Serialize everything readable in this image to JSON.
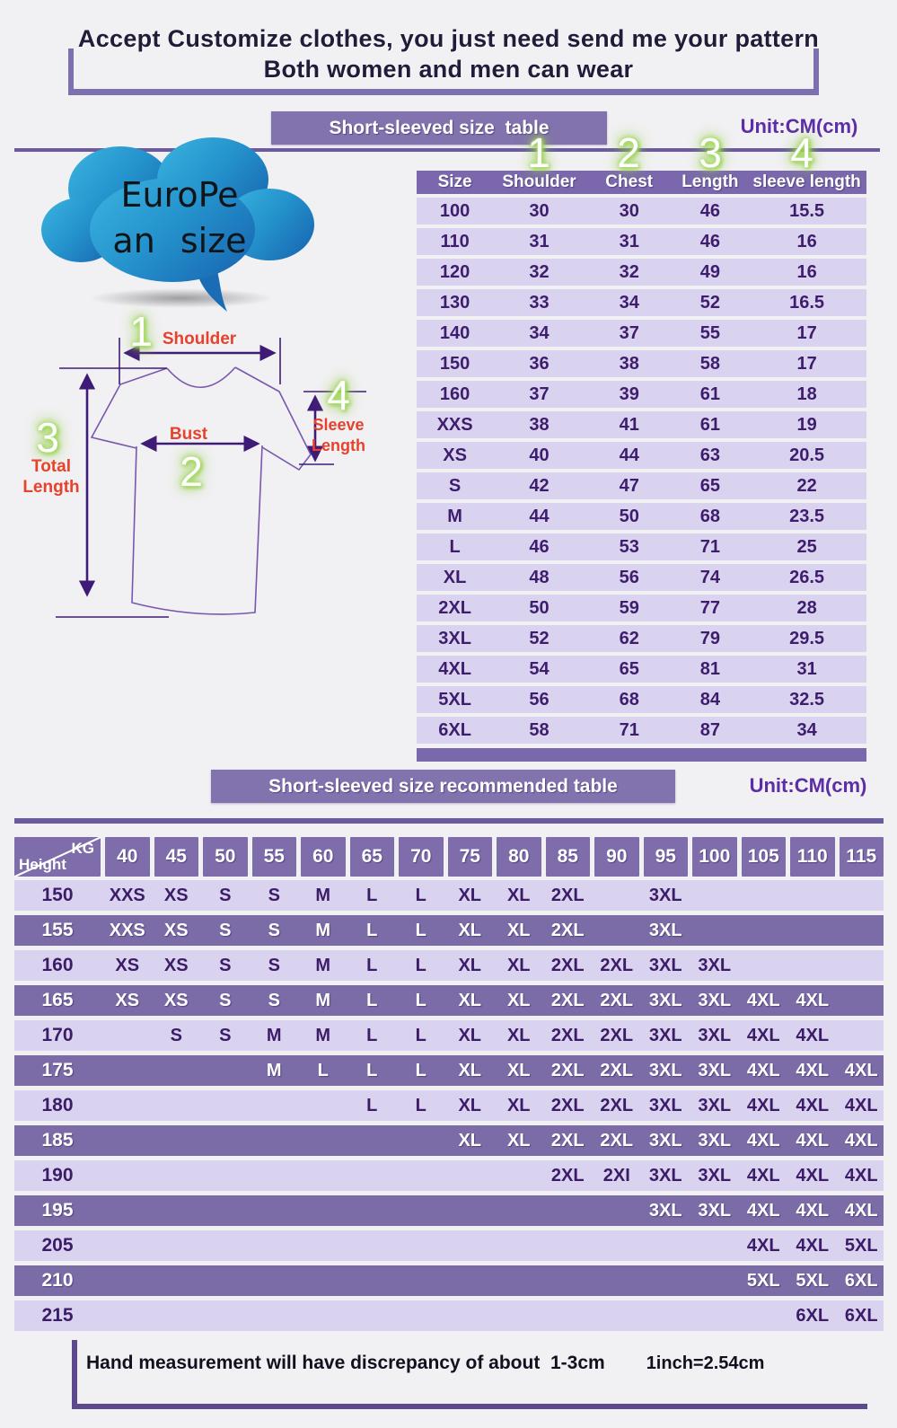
{
  "header": {
    "line1": "Accept Customize clothes, you just need send me your pattern",
    "line2": "Both women and men can wear"
  },
  "cloud": {
    "line1": "EuroPe",
    "line2": "an size"
  },
  "size_table": {
    "title": "Short-sleeved size  table",
    "unit": "Unit:CM(cm)",
    "col_numbers": [
      "1",
      "2",
      "3",
      "4"
    ],
    "columns": [
      "Size",
      "Shoulder",
      "Chest",
      "Length",
      "sleeve length"
    ],
    "rows": [
      [
        "100",
        "30",
        "30",
        "46",
        "15.5"
      ],
      [
        "110",
        "31",
        "31",
        "46",
        "16"
      ],
      [
        "120",
        "32",
        "32",
        "49",
        "16"
      ],
      [
        "130",
        "33",
        "34",
        "52",
        "16.5"
      ],
      [
        "140",
        "34",
        "37",
        "55",
        "17"
      ],
      [
        "150",
        "36",
        "38",
        "58",
        "17"
      ],
      [
        "160",
        "37",
        "39",
        "61",
        "18"
      ],
      [
        "XXS",
        "38",
        "41",
        "61",
        "19"
      ],
      [
        "XS",
        "40",
        "44",
        "63",
        "20.5"
      ],
      [
        "S",
        "42",
        "47",
        "65",
        "22"
      ],
      [
        "M",
        "44",
        "50",
        "68",
        "23.5"
      ],
      [
        "L",
        "46",
        "53",
        "71",
        "25"
      ],
      [
        "XL",
        "48",
        "56",
        "74",
        "26.5"
      ],
      [
        "2XL",
        "50",
        "59",
        "77",
        "28"
      ],
      [
        "3XL",
        "52",
        "62",
        "79",
        "29.5"
      ],
      [
        "4XL",
        "54",
        "65",
        "81",
        "31"
      ],
      [
        "5XL",
        "56",
        "68",
        "84",
        "32.5"
      ],
      [
        "6XL",
        "58",
        "71",
        "87",
        "34"
      ]
    ]
  },
  "diagram": {
    "shoulder": {
      "num": "1",
      "label": "Shoulder"
    },
    "bust": {
      "num": "2",
      "label": "Bust"
    },
    "total": {
      "num": "3",
      "label_line1": "Total",
      "label_line2": "Length"
    },
    "sleeve": {
      "num": "4",
      "label_line1": "Sleeve",
      "label_line2": "Length"
    }
  },
  "recommend_table": {
    "title": "Short-sleeved size recommended table",
    "unit": "Unit:CM(cm)",
    "corner_top": "KG",
    "corner_bottom": "Height",
    "kg_columns": [
      "40",
      "45",
      "50",
      "55",
      "60",
      "65",
      "70",
      "75",
      "80",
      "85",
      "90",
      "95",
      "100",
      "105",
      "110",
      "115"
    ],
    "rows": [
      {
        "height": "150",
        "cells": [
          "XXS",
          "XS",
          "S",
          "S",
          "M",
          "L",
          "L",
          "XL",
          "XL",
          "2XL",
          "",
          "3XL",
          "",
          "",
          "",
          ""
        ]
      },
      {
        "height": "155",
        "cells": [
          "XXS",
          "XS",
          "S",
          "S",
          "M",
          "L",
          "L",
          "XL",
          "XL",
          "2XL",
          "",
          "3XL",
          "",
          "",
          "",
          ""
        ]
      },
      {
        "height": "160",
        "cells": [
          "XS",
          "XS",
          "S",
          "S",
          "M",
          "L",
          "L",
          "XL",
          "XL",
          "2XL",
          "2XL",
          "3XL",
          "3XL",
          "",
          "",
          ""
        ]
      },
      {
        "height": "165",
        "cells": [
          "XS",
          "XS",
          "S",
          "S",
          "M",
          "L",
          "L",
          "XL",
          "XL",
          "2XL",
          "2XL",
          "3XL",
          "3XL",
          "4XL",
          "4XL",
          ""
        ]
      },
      {
        "height": "170",
        "cells": [
          "",
          "S",
          "S",
          "M",
          "M",
          "L",
          "L",
          "XL",
          "XL",
          "2XL",
          "2XL",
          "3XL",
          "3XL",
          "4XL",
          "4XL",
          ""
        ]
      },
      {
        "height": "175",
        "cells": [
          "",
          "",
          "",
          "M",
          "L",
          "L",
          "L",
          "XL",
          "XL",
          "2XL",
          "2XL",
          "3XL",
          "3XL",
          "4XL",
          "4XL",
          "4XL"
        ]
      },
      {
        "height": "180",
        "cells": [
          "",
          "",
          "",
          "",
          "",
          "L",
          "L",
          "XL",
          "XL",
          "2XL",
          "2XL",
          "3XL",
          "3XL",
          "4XL",
          "4XL",
          "4XL"
        ]
      },
      {
        "height": "185",
        "cells": [
          "",
          "",
          "",
          "",
          "",
          "",
          "",
          "XL",
          "XL",
          "2XL",
          "2XL",
          "3XL",
          "3XL",
          "4XL",
          "4XL",
          "4XL"
        ]
      },
      {
        "height": "190",
        "cells": [
          "",
          "",
          "",
          "",
          "",
          "",
          "",
          "",
          "",
          "2XL",
          "2XI",
          "3XL",
          "3XL",
          "4XL",
          "4XL",
          "4XL"
        ]
      },
      {
        "height": "195",
        "cells": [
          "",
          "",
          "",
          "",
          "",
          "",
          "",
          "",
          "",
          "",
          "",
          "3XL",
          "3XL",
          "4XL",
          "4XL",
          "4XL"
        ]
      },
      {
        "height": "205",
        "cells": [
          "",
          "",
          "",
          "",
          "",
          "",
          "",
          "",
          "",
          "",
          "",
          "",
          "",
          "4XL",
          "4XL",
          "5XL"
        ]
      },
      {
        "height": "210",
        "cells": [
          "",
          "",
          "",
          "",
          "",
          "",
          "",
          "",
          "",
          "",
          "",
          "",
          "",
          "5XL",
          "5XL",
          "6XL"
        ]
      },
      {
        "height": "215",
        "cells": [
          "",
          "",
          "",
          "",
          "",
          "",
          "",
          "",
          "",
          "",
          "",
          "",
          "",
          "",
          "6XL",
          "6XL"
        ]
      }
    ]
  },
  "footer": {
    "note": "Hand measurement will have discrepancy of about  1-3cm",
    "conversion": "1inch=2.54cm"
  },
  "colors": {
    "banner_purple": "#8272ad",
    "table_header_purple": "#7b68ac",
    "row_light": "#d9d3ef",
    "row_dark": "#7b6ca7",
    "rec_header_purple": "#7e6cab",
    "deep_purple_text": "#3f1d6e",
    "unit_purple": "#5c2ea6",
    "line_purple": "#6b5aa0",
    "label_red": "#e8412c",
    "glow_green": "#9ad24f",
    "cloud_blue_light": "#3cb4e0",
    "cloud_blue_dark": "#1a6db5"
  }
}
